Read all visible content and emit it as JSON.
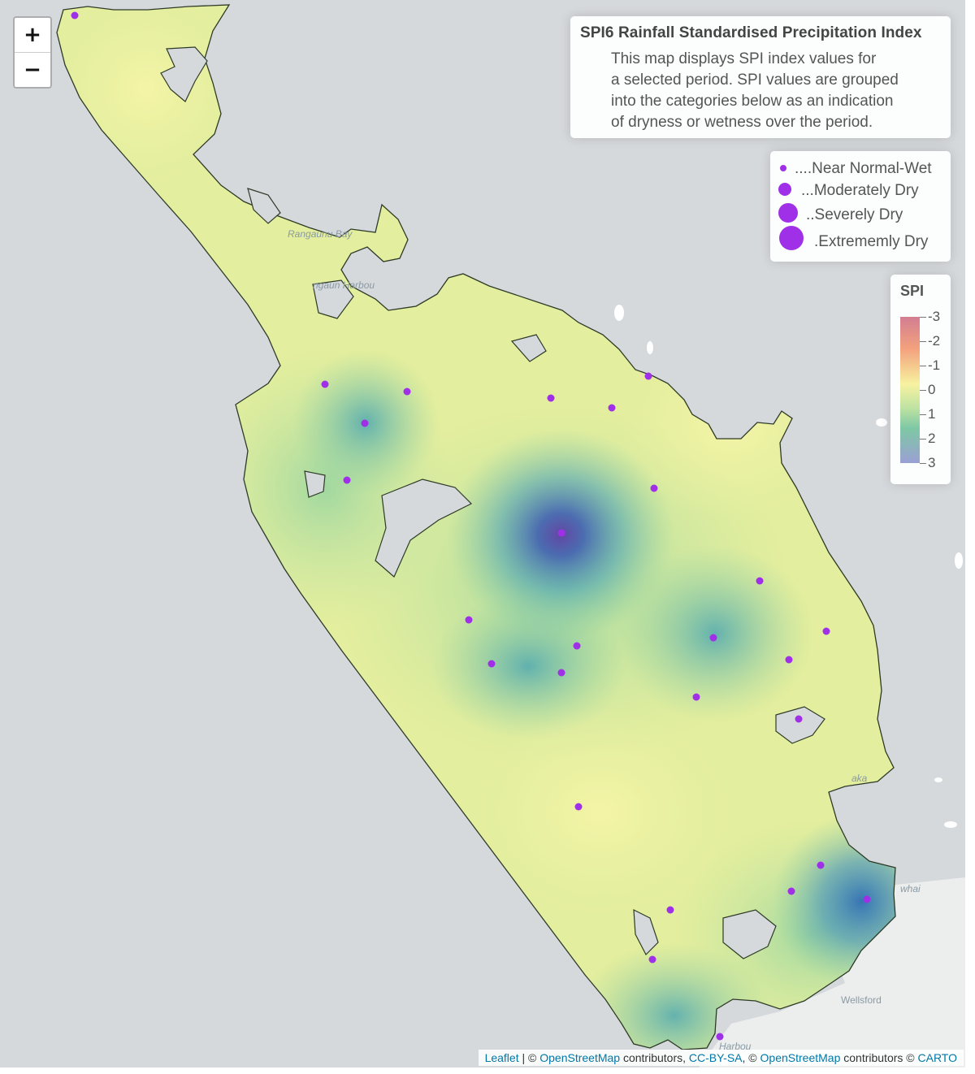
{
  "map": {
    "place_labels": [
      "Rangaunu Bay",
      "ngaun Harbou",
      "aka",
      "whai",
      "Wellsford",
      "Harbou"
    ],
    "stations": [
      {
        "category": "Near Normal-Wet"
      }
    ]
  },
  "zoom": {
    "in_label": "+",
    "out_label": "−"
  },
  "info": {
    "title": "SPI6 Rainfall Standardised Precipitation Index",
    "description": "This map displays SPI index values for\na selected period. SPI values are grouped\ninto the categories below as an indication\nof dryness or wetness over the period."
  },
  "legend": {
    "items": [
      {
        "label": "....Near Normal-Wet",
        "size_level": 1
      },
      {
        "label": "...Moderately Dry",
        "size_level": 2
      },
      {
        "label": "..Severely Dry",
        "size_level": 3
      },
      {
        "label": ".Extrememly Dry",
        "size_level": 4
      }
    ],
    "point_color": "#a030e8"
  },
  "colorbar": {
    "title": "SPI",
    "ticks": [
      "-3",
      "-2",
      "-1",
      "0",
      "1",
      "2",
      "3"
    ],
    "colors": [
      "#d37d92",
      "#f3a27d",
      "#f7f2a0",
      "#bfe3a2",
      "#7ec8a4",
      "#9aa0d4"
    ]
  },
  "attribution": {
    "leaflet": "Leaflet",
    "sep1": " | © ",
    "osm1": "OpenStreetMap",
    "mid1": " contributors, ",
    "ccbysa": "CC-BY-SA",
    "sep2": ", © ",
    "osm2": "OpenStreetMap",
    "mid2": " contributors © ",
    "carto": "CARTO"
  }
}
